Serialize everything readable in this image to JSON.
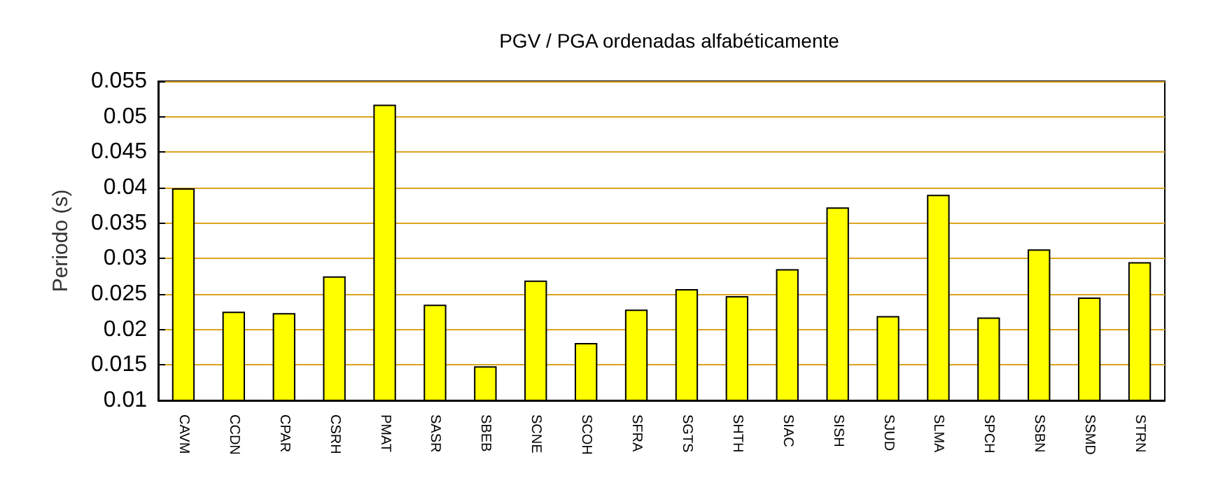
{
  "chart_data": {
    "type": "bar",
    "title": "PGV / PGA ordenadas alfabéticamente",
    "ylabel": "Periodo (s)",
    "categories": [
      "CAVM",
      "CCDN",
      "CPAR",
      "CSRH",
      "PMAT",
      "SASR",
      "SBEB",
      "SCNE",
      "SCOH",
      "SFRA",
      "SGTS",
      "SHTH",
      "SIAC",
      "SISH",
      "SJUD",
      "SLMA",
      "SPCH",
      "SSBN",
      "SSMD",
      "STRN"
    ],
    "values": [
      0.0399,
      0.0225,
      0.0223,
      0.0275,
      0.0517,
      0.0235,
      0.0148,
      0.0269,
      0.0181,
      0.0228,
      0.0257,
      0.0247,
      0.0285,
      0.0372,
      0.0219,
      0.039,
      0.0217,
      0.0313,
      0.0245,
      0.0295
    ],
    "color": "#ffff00",
    "ylim": [
      0.01,
      0.055
    ],
    "yticks": [
      0.01,
      0.015,
      0.02,
      0.025,
      0.03,
      0.035,
      0.04,
      0.045,
      0.05,
      0.055
    ],
    "grid": "y"
  }
}
